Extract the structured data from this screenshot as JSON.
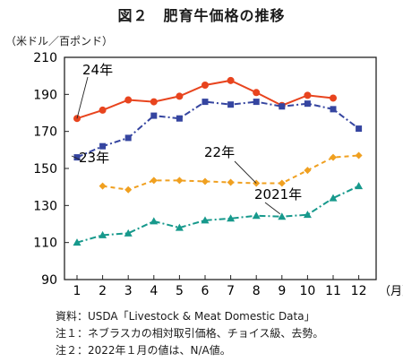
{
  "title": "図２　肥育牛価格の推移",
  "unit_label": "（米ドル／百ポンド）",
  "notes": [
    "資料：USDA「Livestock & Meat Domestic Data」",
    "注１：ネブラスカの相対取引価格、チョイス級、去勢。",
    "注２：2022年１月の値は、N/A値。"
  ],
  "chart_data": {
    "type": "line",
    "title": "図２　肥育牛価格の推移",
    "ylabel": "（米ドル／百ポンド）",
    "xlabel": "（月）",
    "x": [
      1,
      2,
      3,
      4,
      5,
      6,
      7,
      8,
      9,
      10,
      11,
      12
    ],
    "ylim": [
      90,
      210
    ],
    "yticks": [
      90,
      110,
      130,
      150,
      170,
      190,
      210
    ],
    "grid": false,
    "series": [
      {
        "name": "24年",
        "color": "#e8441e",
        "marker": "circle",
        "line": "solid",
        "values": [
          177,
          181.5,
          187,
          186,
          189,
          195,
          197.5,
          191,
          184,
          189.5,
          188,
          null
        ]
      },
      {
        "name": "23年",
        "color": "#3545a0",
        "marker": "square",
        "line": "dashdot",
        "values": [
          156,
          162,
          166.5,
          178.5,
          177,
          186,
          184.5,
          186,
          183.5,
          185,
          182,
          171.5
        ]
      },
      {
        "name": "22年",
        "color": "#f0a020",
        "marker": "diamond",
        "line": "dashed",
        "values": [
          null,
          140.5,
          138.5,
          143.5,
          143.5,
          143,
          142.5,
          142,
          142,
          149,
          156,
          157
        ]
      },
      {
        "name": "2021年",
        "color": "#17998c",
        "marker": "triangle",
        "line": "dashdot",
        "values": [
          110,
          114,
          115,
          121.5,
          118,
          122,
          123,
          124.5,
          124,
          125,
          134,
          140.5
        ]
      }
    ]
  }
}
